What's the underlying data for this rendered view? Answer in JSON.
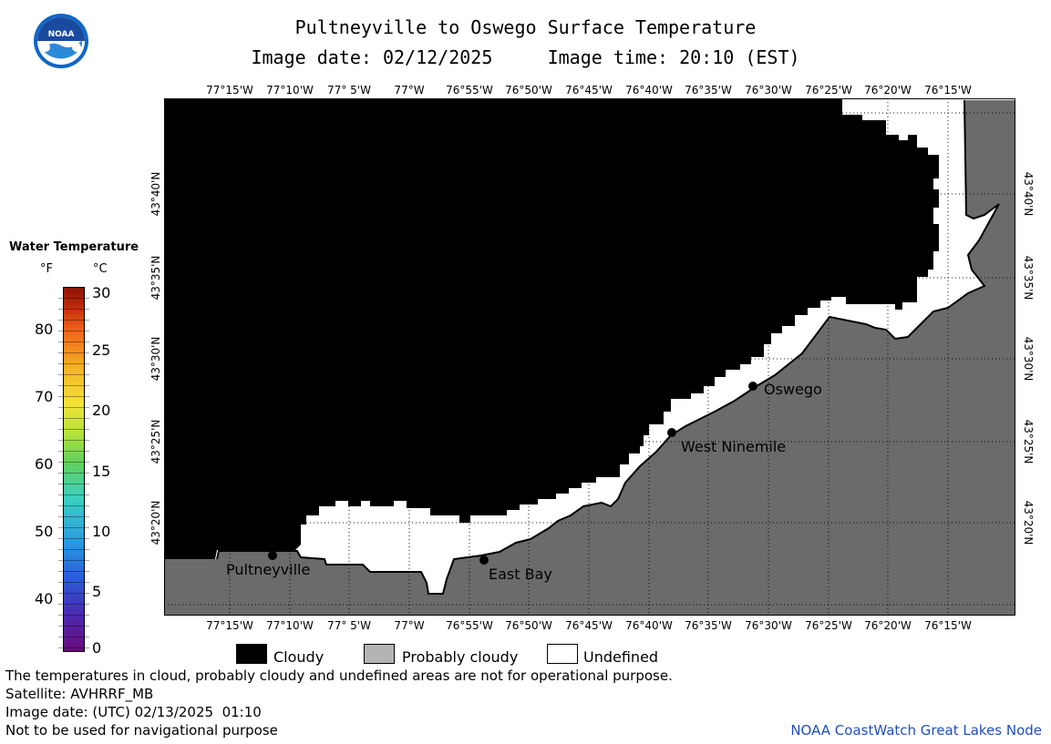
{
  "header": {
    "title": "Pultneyville to Oswego Surface Temperature",
    "subtitle": "Image date: 02/12/2025     Image time: 20:10 (EST)"
  },
  "logo": {
    "text": "NOAA"
  },
  "map": {
    "lon_labels": [
      "77°15'W",
      "77°10'W",
      "77° 5'W",
      "77°W",
      "76°55'W",
      "76°50'W",
      "76°45'W",
      "76°40'W",
      "76°35'W",
      "76°30'W",
      "76°25'W",
      "76°20'W",
      "76°15'W"
    ],
    "lat_labels": [
      "43°40'N",
      "43°35'N",
      "43°30'N",
      "43°25'N",
      "43°20'N"
    ],
    "places": [
      {
        "name": "Pultneyville"
      },
      {
        "name": "East Bay"
      },
      {
        "name": "West Ninemile"
      },
      {
        "name": "Oswego"
      }
    ]
  },
  "scale": {
    "title": "Water Temperature",
    "unit_f": "°F",
    "unit_c": "°C",
    "f_ticks": [
      "80",
      "70",
      "60",
      "50",
      "40"
    ],
    "c_ticks": [
      "30",
      "25",
      "20",
      "15",
      "10",
      "5",
      "0"
    ]
  },
  "legend": {
    "cloudy": "Cloudy",
    "probably_cloudy": "Probably cloudy",
    "undefined": "Undefined"
  },
  "footer": {
    "line1": "The temperatures in cloud, probably cloudy and undefined areas are not for operational purpose.",
    "line2": "Satellite: AVHRRF_MB",
    "line3": "Image date: (UTC) 02/13/2025  01:10",
    "line4": "Not to be used for navigational purpose",
    "credit": "NOAA CoastWatch Great Lakes Node"
  },
  "colors": {
    "cloud": "#000000",
    "land": "#6b6b6b",
    "probably_cloudy": "#b4b4b4",
    "undefined": "#ffffff",
    "credit": "#1f4fbf"
  }
}
